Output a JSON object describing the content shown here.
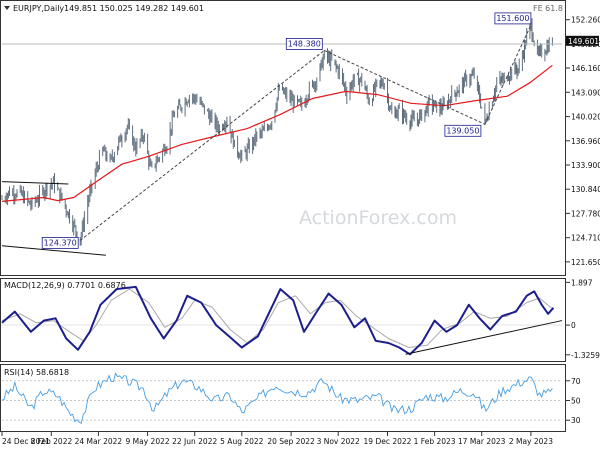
{
  "header": {
    "symbol_label": "EURJPY,Daily",
    "ohlc": "149.851 150.025 149.282 149.601",
    "fe_label": "FE 61.8"
  },
  "watermark": "ActionForex.com",
  "colors": {
    "candle": "#5f6e7e",
    "ma": "#e31a1c",
    "macd": "#1b1e8c",
    "signal": "#aaaaaa",
    "rsi": "#4a9ee0",
    "trend": "#111111",
    "axis": "#333333"
  },
  "chart_data": [
    {
      "type": "candlestick",
      "title": "EURJPY,Daily",
      "ylim": [
        120,
        154.5
      ],
      "yticks": [
        "152.260",
        "149.220",
        "146.160",
        "143.090",
        "140.020",
        "136.960",
        "133.900",
        "130.840",
        "127.780",
        "124.710",
        "121.650"
      ],
      "last_price": "149.601",
      "moving_average": [
        [
          "2021-12-24",
          129.3
        ],
        [
          "2022-02-01",
          129.8
        ],
        [
          "2022-02-14",
          129.4
        ],
        [
          "2022-03-01",
          129.8
        ],
        [
          "2022-03-20",
          131.6
        ],
        [
          "2022-04-15",
          134.0
        ],
        [
          "2022-05-10",
          135.0
        ],
        [
          "2022-06-10",
          136.5
        ],
        [
          "2022-07-10",
          137.5
        ],
        [
          "2022-08-10",
          138.5
        ],
        [
          "2022-09-10",
          140.3
        ],
        [
          "2022-10-10",
          142.3
        ],
        [
          "2022-11-10",
          143.2
        ],
        [
          "2022-12-10",
          142.8
        ],
        [
          "2023-01-10",
          141.7
        ],
        [
          "2023-02-10",
          141.4
        ],
        [
          "2023-03-10",
          142.0
        ],
        [
          "2023-04-10",
          142.6
        ],
        [
          "2023-05-01",
          144.3
        ],
        [
          "2023-05-22",
          146.5
        ]
      ],
      "path": [
        [
          "2021-12-24",
          129.6
        ],
        [
          "2021-12-31",
          130.5
        ],
        [
          "2022-01-10",
          130.3
        ],
        [
          "2022-01-20",
          128.8
        ],
        [
          "2022-01-28",
          129.9
        ],
        [
          "2022-02-04",
          131.2
        ],
        [
          "2022-02-10",
          131.7
        ],
        [
          "2022-02-18",
          129.6
        ],
        [
          "2022-02-28",
          126.5
        ],
        [
          "2022-03-07",
          124.5
        ],
        [
          "2022-03-14",
          129.3
        ],
        [
          "2022-03-21",
          132.8
        ],
        [
          "2022-03-28",
          135.8
        ],
        [
          "2022-04-04",
          134.3
        ],
        [
          "2022-04-11",
          136.5
        ],
        [
          "2022-04-20",
          138.8
        ],
        [
          "2022-04-28",
          136.0
        ],
        [
          "2022-05-05",
          137.8
        ],
        [
          "2022-05-12",
          133.3
        ],
        [
          "2022-05-20",
          135.0
        ],
        [
          "2022-05-27",
          136.6
        ],
        [
          "2022-06-03",
          140.4
        ],
        [
          "2022-06-10",
          141.5
        ],
        [
          "2022-06-17",
          142.6
        ],
        [
          "2022-06-24",
          142.2
        ],
        [
          "2022-07-01",
          141.0
        ],
        [
          "2022-07-08",
          139.6
        ],
        [
          "2022-07-15",
          138.6
        ],
        [
          "2022-07-22",
          139.7
        ],
        [
          "2022-07-29",
          136.4
        ],
        [
          "2022-08-05",
          134.9
        ],
        [
          "2022-08-12",
          136.1
        ],
        [
          "2022-08-19",
          137.6
        ],
        [
          "2022-08-26",
          138.1
        ],
        [
          "2022-09-02",
          139.6
        ],
        [
          "2022-09-09",
          143.5
        ],
        [
          "2022-09-16",
          142.6
        ],
        [
          "2022-09-23",
          141.8
        ],
        [
          "2022-09-30",
          141.4
        ],
        [
          "2022-10-07",
          143.4
        ],
        [
          "2022-10-14",
          144.8
        ],
        [
          "2022-10-21",
          147.7
        ],
        [
          "2022-10-28",
          147.0
        ],
        [
          "2022-11-04",
          145.7
        ],
        [
          "2022-11-11",
          143.0
        ],
        [
          "2022-11-18",
          144.8
        ],
        [
          "2022-11-25",
          144.6
        ],
        [
          "2022-12-02",
          141.9
        ],
        [
          "2022-12-09",
          144.0
        ],
        [
          "2022-12-16",
          144.3
        ],
        [
          "2022-12-23",
          140.2
        ],
        [
          "2022-12-30",
          140.8
        ],
        [
          "2023-01-06",
          139.8
        ],
        [
          "2023-01-13",
          139.4
        ],
        [
          "2023-01-20",
          140.2
        ],
        [
          "2023-01-27",
          141.7
        ],
        [
          "2023-02-03",
          141.2
        ],
        [
          "2023-02-10",
          141.2
        ],
        [
          "2023-02-17",
          142.7
        ],
        [
          "2023-02-24",
          143.6
        ],
        [
          "2023-03-03",
          144.8
        ],
        [
          "2023-03-10",
          145.2
        ],
        [
          "2023-03-17",
          141.2
        ],
        [
          "2023-03-20",
          139.1
        ],
        [
          "2023-03-24",
          141.0
        ],
        [
          "2023-03-31",
          144.2
        ],
        [
          "2023-04-07",
          144.8
        ],
        [
          "2023-04-14",
          145.8
        ],
        [
          "2023-04-21",
          146.1
        ],
        [
          "2023-04-28",
          150.0
        ],
        [
          "2023-05-02",
          151.4
        ],
        [
          "2023-05-08",
          147.7
        ],
        [
          "2023-05-15",
          148.5
        ],
        [
          "2023-05-22",
          149.6
        ]
      ],
      "annotations": [
        {
          "text": "124.370",
          "date": "2022-03-07",
          "value": 124.37
        },
        {
          "text": "148.380",
          "date": "2022-10-21",
          "value": 148.38
        },
        {
          "text": "139.050",
          "date": "2023-03-20",
          "value": 139.05
        },
        {
          "text": "151.600",
          "date": "2023-05-02",
          "value": 151.6
        }
      ]
    },
    {
      "type": "line",
      "title": "MACD(12,26,9) 0.7701 0.6876",
      "ylim": [
        -1.6,
        2.05
      ],
      "yticks": [
        "1.897",
        "0",
        "-1.3259"
      ],
      "series": [
        {
          "name": "MACD",
          "values": [
            [
              "2021-12-24",
              0.1
            ],
            [
              "2022-01-05",
              0.6
            ],
            [
              "2022-01-20",
              -0.3
            ],
            [
              "2022-02-01",
              0.2
            ],
            [
              "2022-02-12",
              0.3
            ],
            [
              "2022-02-22",
              -0.6
            ],
            [
              "2022-03-05",
              -1.1
            ],
            [
              "2022-03-16",
              -0.3
            ],
            [
              "2022-03-26",
              0.9
            ],
            [
              "2022-04-10",
              1.6
            ],
            [
              "2022-04-28",
              1.7
            ],
            [
              "2022-05-12",
              0.3
            ],
            [
              "2022-05-24",
              -0.6
            ],
            [
              "2022-06-05",
              0.2
            ],
            [
              "2022-06-15",
              1.3
            ],
            [
              "2022-06-28",
              1.0
            ],
            [
              "2022-07-12",
              0.0
            ],
            [
              "2022-07-24",
              -0.5
            ],
            [
              "2022-08-05",
              -1.0
            ],
            [
              "2022-08-20",
              -0.5
            ],
            [
              "2022-08-30",
              0.5
            ],
            [
              "2022-09-10",
              1.6
            ],
            [
              "2022-09-22",
              1.1
            ],
            [
              "2022-10-02",
              -0.3
            ],
            [
              "2022-10-14",
              0.6
            ],
            [
              "2022-10-25",
              1.4
            ],
            [
              "2022-11-06",
              0.9
            ],
            [
              "2022-11-18",
              -0.1
            ],
            [
              "2022-11-28",
              0.3
            ],
            [
              "2022-12-08",
              -0.7
            ],
            [
              "2022-12-20",
              -0.8
            ],
            [
              "2022-12-30",
              -1.0
            ],
            [
              "2023-01-09",
              -1.3
            ],
            [
              "2023-01-20",
              -0.8
            ],
            [
              "2023-02-01",
              0.2
            ],
            [
              "2023-02-12",
              -0.3
            ],
            [
              "2023-02-22",
              0.0
            ],
            [
              "2023-03-05",
              0.9
            ],
            [
              "2023-03-15",
              0.3
            ],
            [
              "2023-03-25",
              -0.2
            ],
            [
              "2023-04-05",
              0.4
            ],
            [
              "2023-04-18",
              0.6
            ],
            [
              "2023-04-28",
              1.3
            ],
            [
              "2023-05-05",
              1.5
            ],
            [
              "2023-05-12",
              0.9
            ],
            [
              "2023-05-18",
              0.5
            ],
            [
              "2023-05-23",
              0.77
            ]
          ]
        },
        {
          "name": "Signal",
          "values": [
            [
              "2021-12-24",
              0.2
            ],
            [
              "2022-01-10",
              0.5
            ],
            [
              "2022-01-25",
              0.1
            ],
            [
              "2022-02-10",
              0.2
            ],
            [
              "2022-02-25",
              -0.3
            ],
            [
              "2022-03-10",
              -0.7
            ],
            [
              "2022-03-22",
              0.0
            ],
            [
              "2022-04-05",
              1.1
            ],
            [
              "2022-04-22",
              1.6
            ],
            [
              "2022-05-10",
              1.0
            ],
            [
              "2022-05-25",
              -0.1
            ],
            [
              "2022-06-10",
              0.3
            ],
            [
              "2022-06-22",
              1.1
            ],
            [
              "2022-07-08",
              0.8
            ],
            [
              "2022-07-25",
              -0.2
            ],
            [
              "2022-08-10",
              -0.8
            ],
            [
              "2022-08-25",
              -0.2
            ],
            [
              "2022-09-08",
              1.0
            ],
            [
              "2022-09-24",
              1.3
            ],
            [
              "2022-10-08",
              0.5
            ],
            [
              "2022-10-22",
              1.0
            ],
            [
              "2022-11-05",
              1.1
            ],
            [
              "2022-11-20",
              0.4
            ],
            [
              "2022-12-05",
              -0.1
            ],
            [
              "2022-12-20",
              -0.6
            ],
            [
              "2023-01-08",
              -1.0
            ],
            [
              "2023-01-25",
              -0.9
            ],
            [
              "2023-02-08",
              -0.2
            ],
            [
              "2023-02-25",
              0.1
            ],
            [
              "2023-03-10",
              0.6
            ],
            [
              "2023-03-25",
              0.3
            ],
            [
              "2023-04-10",
              0.4
            ],
            [
              "2023-04-28",
              1.0
            ],
            [
              "2023-05-10",
              1.2
            ],
            [
              "2023-05-23",
              0.69
            ]
          ]
        }
      ],
      "trendline": [
        [
          "2023-01-05",
          -1.3
        ],
        [
          "2023-05-31",
          0.2
        ]
      ]
    },
    {
      "type": "line",
      "title": "RSI(14) 58.6818",
      "ylim": [
        19,
        86
      ],
      "yticks": [
        "70",
        "50",
        "30"
      ],
      "series": [
        {
          "name": "RSI(14)",
          "values": [
            [
              "2021-12-24",
              52
            ],
            [
              "2022-01-05",
              64
            ],
            [
              "2022-01-20",
              42
            ],
            [
              "2022-02-01",
              60
            ],
            [
              "2022-02-14",
              55
            ],
            [
              "2022-02-25",
              38
            ],
            [
              "2022-03-07",
              29
            ],
            [
              "2022-03-20",
              62
            ],
            [
              "2022-04-05",
              74
            ],
            [
              "2022-04-20",
              70
            ],
            [
              "2022-05-05",
              62
            ],
            [
              "2022-05-15",
              40
            ],
            [
              "2022-05-28",
              58
            ],
            [
              "2022-06-10",
              70
            ],
            [
              "2022-06-25",
              64
            ],
            [
              "2022-07-10",
              50
            ],
            [
              "2022-07-25",
              55
            ],
            [
              "2022-08-05",
              38
            ],
            [
              "2022-08-20",
              52
            ],
            [
              "2022-09-05",
              66
            ],
            [
              "2022-09-20",
              60
            ],
            [
              "2022-10-05",
              58
            ],
            [
              "2022-10-20",
              70
            ],
            [
              "2022-11-05",
              52
            ],
            [
              "2022-11-20",
              50
            ],
            [
              "2022-12-10",
              54
            ],
            [
              "2022-12-25",
              40
            ],
            [
              "2023-01-10",
              42
            ],
            [
              "2023-01-25",
              55
            ],
            [
              "2023-02-10",
              52
            ],
            [
              "2023-02-25",
              60
            ],
            [
              "2023-03-10",
              58
            ],
            [
              "2023-03-20",
              40
            ],
            [
              "2023-04-05",
              60
            ],
            [
              "2023-04-25",
              70
            ],
            [
              "2023-05-02",
              72
            ],
            [
              "2023-05-10",
              56
            ],
            [
              "2023-05-23",
              58.7
            ]
          ]
        }
      ]
    }
  ],
  "x_axis": {
    "labels": [
      {
        "text": "24 Dec 2021",
        "date": "2021-12-24"
      },
      {
        "text": "8 Feb 2022",
        "date": "2022-02-08"
      },
      {
        "text": "24 Mar 2022",
        "date": "2022-03-24"
      },
      {
        "text": "9 May 2022",
        "date": "2022-05-09"
      },
      {
        "text": "22 Jun 2022",
        "date": "2022-06-22"
      },
      {
        "text": "5 Aug 2022",
        "date": "2022-08-05"
      },
      {
        "text": "20 Sep 2022",
        "date": "2022-09-20"
      },
      {
        "text": "3 Nov 2022",
        "date": "2022-11-03"
      },
      {
        "text": "19 Dec 2022",
        "date": "2022-12-19"
      },
      {
        "text": "1 Feb 2023",
        "date": "2023-02-01"
      },
      {
        "text": "17 Mar 2023",
        "date": "2023-03-17"
      },
      {
        "text": "2 May 2023",
        "date": "2023-05-02"
      }
    ],
    "range": [
      "2021-12-24",
      "2023-05-31"
    ]
  }
}
